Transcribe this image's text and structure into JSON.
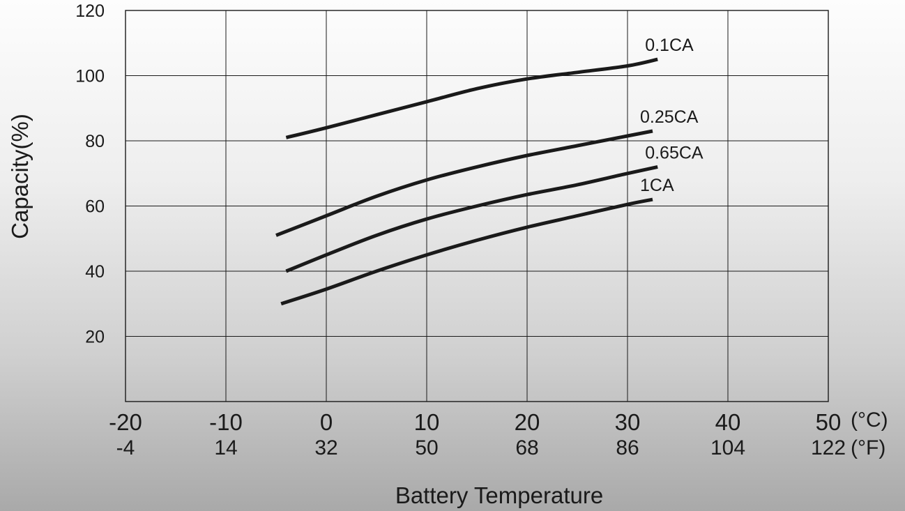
{
  "chart_data": {
    "type": "line",
    "title": "",
    "xlabel": "Battery Temperature",
    "ylabel": "Capacity(%)",
    "x_ticks_c": [
      "-20",
      "-10",
      "0",
      "10",
      "20",
      "30",
      "40",
      "50"
    ],
    "x_ticks_f": [
      "-4",
      "14",
      "32",
      "50",
      "68",
      "86",
      "104",
      "122"
    ],
    "x_unit_c": "(°C)",
    "x_unit_f": "(°F)",
    "xlim": [
      -20,
      50
    ],
    "y_ticks": [
      "20",
      "40",
      "60",
      "80",
      "100",
      "120"
    ],
    "ylim": [
      0,
      120
    ],
    "grid": true,
    "series": [
      {
        "name": "0.1CA",
        "x": [
          -4,
          0,
          5,
          10,
          15,
          20,
          25,
          30,
          33
        ],
        "values": [
          81,
          84,
          88,
          92,
          96,
          99,
          101,
          103,
          105
        ]
      },
      {
        "name": "0.25CA",
        "x": [
          -5,
          0,
          5,
          10,
          15,
          20,
          25,
          30,
          32.5
        ],
        "values": [
          51,
          57,
          63,
          68,
          72,
          75.5,
          78.5,
          81.5,
          83
        ]
      },
      {
        "name": "0.65CA",
        "x": [
          -4,
          0,
          5,
          10,
          15,
          20,
          25,
          30,
          33
        ],
        "values": [
          40,
          45,
          51,
          56,
          60,
          63.5,
          66.5,
          70,
          72
        ]
      },
      {
        "name": "1CA",
        "x": [
          -4.5,
          0,
          5,
          10,
          15,
          20,
          25,
          30,
          32.5
        ],
        "values": [
          30,
          34.5,
          40,
          45,
          49.5,
          53.5,
          57,
          60.5,
          62
        ]
      }
    ]
  }
}
